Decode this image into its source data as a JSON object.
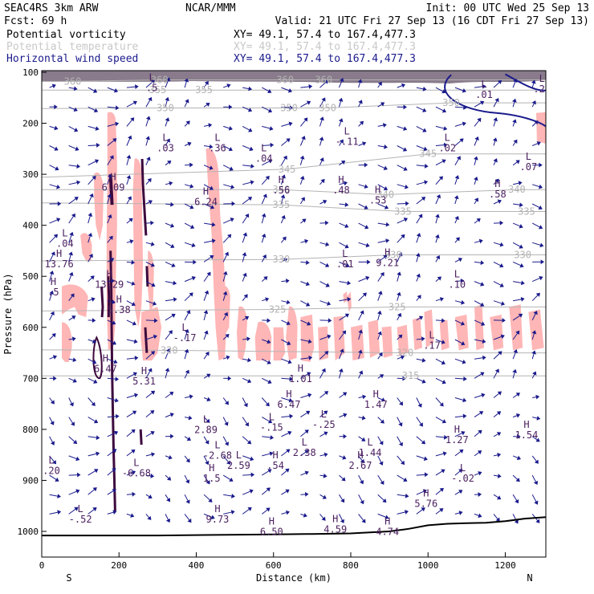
{
  "header": {
    "left_line1": "SEAC4RS  3km ARW",
    "left_line2": "Fcst:   69 h",
    "center": "NCAR/MMM",
    "init": "Init: 00 UTC Wed 25 Sep 13",
    "valid": "Valid: 21 UTC Fri 27 Sep 13 (16 CDT Fri 27 Sep 13)",
    "fields": [
      {
        "name": "Potential vorticity",
        "color": "#000000",
        "xy": "XY=  49.1, 57.4 to 167.4,477.3"
      },
      {
        "name": "Potential temperature",
        "color": "#c8c8c8",
        "xy": "XY=  49.1, 57.4 to 167.4,477.3"
      },
      {
        "name": "Horizontal wind speed",
        "color": "#1a1a8c",
        "xy": "XY=  49.1, 57.4 to 167.4,477.3"
      }
    ]
  },
  "chart_data": {
    "type": "cross-section",
    "xlabel": "Distance (km)",
    "ylabel": "Pressure (hPa)",
    "x_ticks": [
      0,
      200,
      400,
      600,
      800,
      1000,
      1200
    ],
    "y_ticks": [
      100,
      200,
      300,
      400,
      500,
      600,
      700,
      800,
      900,
      1000
    ],
    "xlim": [
      0,
      1305
    ],
    "ylim": [
      1050,
      100
    ],
    "ends": {
      "left": "S",
      "right": "N"
    },
    "theta_labels": [
      {
        "x": 80,
        "p": 118,
        "text": "360"
      },
      {
        "x": 305,
        "p": 115,
        "text": "360"
      },
      {
        "x": 630,
        "p": 115,
        "text": "360"
      },
      {
        "x": 730,
        "p": 115,
        "text": "360"
      },
      {
        "x": 300,
        "p": 135,
        "text": "355"
      },
      {
        "x": 420,
        "p": 135,
        "text": "355"
      },
      {
        "x": 320,
        "p": 170,
        "text": "350"
      },
      {
        "x": 640,
        "p": 170,
        "text": "350"
      },
      {
        "x": 740,
        "p": 170,
        "text": "350"
      },
      {
        "x": 1060,
        "p": 160,
        "text": "350"
      },
      {
        "x": 635,
        "p": 290,
        "text": "345"
      },
      {
        "x": 1000,
        "p": 260,
        "text": "345"
      },
      {
        "x": 620,
        "p": 330,
        "text": "340"
      },
      {
        "x": 890,
        "p": 340,
        "text": "340"
      },
      {
        "x": 1230,
        "p": 330,
        "text": "340"
      },
      {
        "x": 620,
        "p": 360,
        "text": "335"
      },
      {
        "x": 935,
        "p": 373,
        "text": "335"
      },
      {
        "x": 1255,
        "p": 373,
        "text": "335"
      },
      {
        "x": 620,
        "p": 467,
        "text": "330"
      },
      {
        "x": 910,
        "p": 458,
        "text": "330"
      },
      {
        "x": 1245,
        "p": 458,
        "text": "330"
      },
      {
        "x": 610,
        "p": 565,
        "text": "325"
      },
      {
        "x": 920,
        "p": 560,
        "text": "325"
      },
      {
        "x": 330,
        "p": 645,
        "text": "320"
      },
      {
        "x": 940,
        "p": 650,
        "text": "320"
      },
      {
        "x": 955,
        "p": 695,
        "text": "315"
      }
    ],
    "pv_extrema": [
      {
        "type": "L",
        "value": ".5",
        "x": 285,
        "p": 120
      },
      {
        "type": "L",
        "value": ".01",
        "x": 1145,
        "p": 133
      },
      {
        "type": "L",
        "value": ".25",
        "x": 1295,
        "p": 122
      },
      {
        "type": "L",
        "value": "-.11",
        "x": 790,
        "p": 225
      },
      {
        "type": "L",
        "value": ".03",
        "x": 320,
        "p": 238
      },
      {
        "type": "L",
        "value": ".36",
        "x": 455,
        "p": 238
      },
      {
        "type": "L",
        "value": ".02",
        "x": 1050,
        "p": 238
      },
      {
        "type": "L",
        "value": ".04",
        "x": 575,
        "p": 258
      },
      {
        "type": "L",
        "value": ".07",
        "x": 1260,
        "p": 275
      },
      {
        "type": "H",
        "value": "6.09",
        "x": 185,
        "p": 315
      },
      {
        "type": "H",
        "value": ".56",
        "x": 620,
        "p": 320
      },
      {
        "type": "H",
        "value": ".48",
        "x": 775,
        "p": 320
      },
      {
        "type": "H",
        "value": "6.24",
        "x": 425,
        "p": 343
      },
      {
        "type": "H",
        "value": ".53",
        "x": 870,
        "p": 340
      },
      {
        "type": "H",
        "value": ".58",
        "x": 1180,
        "p": 328
      },
      {
        "type": "L",
        "value": ".04",
        "x": 60,
        "p": 425
      },
      {
        "type": "H",
        "value": "13.76",
        "x": 45,
        "p": 465
      },
      {
        "type": "L",
        "value": ".01",
        "x": 785,
        "p": 465
      },
      {
        "type": "H",
        "value": "9.21",
        "x": 895,
        "p": 463
      },
      {
        "type": "H",
        "value": ".5",
        "x": 30,
        "p": 520
      },
      {
        "type": "H",
        "value": "13.29",
        "x": 175,
        "p": 505
      },
      {
        "type": "L",
        "value": ".10",
        "x": 1075,
        "p": 505
      },
      {
        "type": "H",
        "value": "5.38",
        "x": 200,
        "p": 555
      },
      {
        "type": "L",
        "value": "-.17",
        "x": 370,
        "p": 610
      },
      {
        "type": "L",
        "value": ".17",
        "x": 1010,
        "p": 625
      },
      {
        "type": "H",
        "value": "6.47",
        "x": 165,
        "p": 670
      },
      {
        "type": "H",
        "value": "5.31",
        "x": 265,
        "p": 695
      },
      {
        "type": "H",
        "value": "1.01",
        "x": 670,
        "p": 690
      },
      {
        "type": "H",
        "value": "6.47",
        "x": 640,
        "p": 740
      },
      {
        "type": "H",
        "value": "1.47",
        "x": 865,
        "p": 740
      },
      {
        "type": "L",
        "value": "2.89",
        "x": 425,
        "p": 790
      },
      {
        "type": "L",
        "value": "-.15",
        "x": 595,
        "p": 785
      },
      {
        "type": "L",
        "value": "-.25",
        "x": 730,
        "p": 780
      },
      {
        "type": "H",
        "value": "1.27",
        "x": 1075,
        "p": 810
      },
      {
        "type": "H",
        "value": "1.54",
        "x": 1255,
        "p": 800
      },
      {
        "type": "L",
        "value": "-2.68",
        "x": 455,
        "p": 840
      },
      {
        "type": "L",
        "value": "2.38",
        "x": 680,
        "p": 835
      },
      {
        "type": "L",
        "value": "1.44",
        "x": 850,
        "p": 835
      },
      {
        "type": "L",
        "value": "2.59",
        "x": 510,
        "p": 860
      },
      {
        "type": "H",
        "value": ".54",
        "x": 605,
        "p": 860
      },
      {
        "type": "H",
        "value": "2.67",
        "x": 825,
        "p": 860
      },
      {
        "type": "L",
        "value": ".20",
        "x": 25,
        "p": 870
      },
      {
        "type": "L",
        "value": "-6.68",
        "x": 245,
        "p": 875
      },
      {
        "type": "H",
        "value": "1.5",
        "x": 440,
        "p": 885
      },
      {
        "type": "L",
        "value": "-.02",
        "x": 1090,
        "p": 885
      },
      {
        "type": "H",
        "value": "5.76",
        "x": 995,
        "p": 935
      },
      {
        "type": "L",
        "value": "-.52",
        "x": 100,
        "p": 965
      },
      {
        "type": "H",
        "value": "9.73",
        "x": 455,
        "p": 965
      },
      {
        "type": "H",
        "value": "6.50",
        "x": 595,
        "p": 990
      },
      {
        "type": "H",
        "value": "4.59",
        "x": 760,
        "p": 985
      },
      {
        "type": "H",
        "value": "4.74",
        "x": 895,
        "p": 990
      }
    ]
  }
}
